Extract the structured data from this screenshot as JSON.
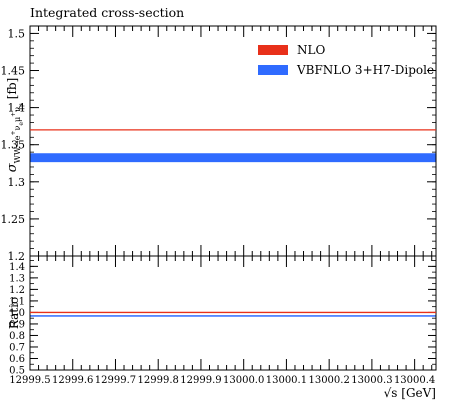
{
  "chart_data": {
    "type": "line",
    "title": "Integrated cross-section",
    "xlabel": "√s [GeV]",
    "ylabel_main": "σ WW→e⁺νμ⁺ν [fb]",
    "ylabel_ratio": "Ratio",
    "xlim": [
      12999.5,
      13000.45
    ],
    "x_ticks": [
      12999.5,
      12999.6,
      12999.7,
      12999.8,
      12999.9,
      13000.0,
      13000.1,
      13000.2,
      13000.3,
      13000.4
    ],
    "x_tick_labels": [
      "12999.5",
      "12999.6",
      "12999.7",
      "12999.8",
      "12999.9",
      "13000.0",
      "13000.1",
      "13000.2",
      "13000.3",
      "13000.4"
    ],
    "main": {
      "ylim": [
        1.2,
        1.51
      ],
      "y_ticks": [
        1.2,
        1.25,
        1.3,
        1.35,
        1.4,
        1.45,
        1.5
      ],
      "y_tick_labels": [
        "1.2",
        "1.25",
        "1.3",
        "1.35",
        "1.4",
        "1.45",
        "1.5"
      ]
    },
    "ratio": {
      "ylim": [
        0.5,
        1.49
      ],
      "y_ticks": [
        0.5,
        0.6,
        0.7,
        0.8,
        0.9,
        1.0,
        1.1,
        1.2,
        1.3,
        1.4
      ],
      "y_tick_labels": [
        "0.5",
        "0.6",
        "0.7",
        "0.8",
        "0.9",
        "1.0",
        "1.1",
        "1.2",
        "1.3",
        "1.4"
      ]
    },
    "legend_position": "top-right",
    "grid": false,
    "series": [
      {
        "name": "NLO",
        "color": "#e8301a",
        "style": "line",
        "value": 1.37,
        "ratio_value": 1.0
      },
      {
        "name": "VBFNLO 3+H7-Dipole",
        "color": "#2f6bff",
        "style": "band",
        "value": 1.3325,
        "value_low": 1.3265,
        "value_high": 1.3385,
        "ratio_value": 0.972,
        "ratio_low": 0.968,
        "ratio_high": 0.976
      }
    ]
  }
}
